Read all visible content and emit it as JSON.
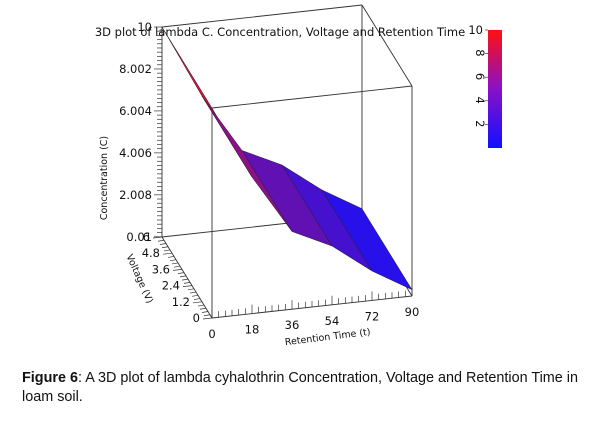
{
  "chart_data": {
    "type": "surface",
    "title": "3D plot of lambda C. Concentration, Voltage and Retention Time",
    "x_axis": {
      "label": "Retention Time (t)",
      "ticks": [
        "0",
        "18",
        "36",
        "54",
        "72",
        "90"
      ],
      "range": [
        0,
        90
      ]
    },
    "y_axis": {
      "label": "Voltage (V)",
      "ticks": [
        "0",
        "1.2",
        "2.4",
        "3.6",
        "4.8",
        "6"
      ],
      "range": [
        0,
        6
      ]
    },
    "z_axis": {
      "label": "Concentration (C)",
      "ticks": [
        "0.01",
        "2.008",
        "4.006",
        "6.004",
        "8.002",
        "10"
      ],
      "range": [
        0.01,
        10
      ]
    },
    "colorbar": {
      "ticks": [
        "2",
        "4",
        "6",
        "8",
        "10"
      ],
      "range": [
        0,
        10
      ],
      "low_color": "#1010ff",
      "high_color": "#ff1010"
    },
    "surface": {
      "t": [
        0,
        18,
        36,
        54,
        72,
        90
      ],
      "concentration": [
        10,
        6.5,
        3.7,
        2.8,
        1.4,
        0.3
      ]
    }
  },
  "caption": {
    "label": "Figure 6",
    "text": ": A 3D plot of lambda cyhalothrin Concentration, Voltage and Retention Time in loam soil."
  }
}
